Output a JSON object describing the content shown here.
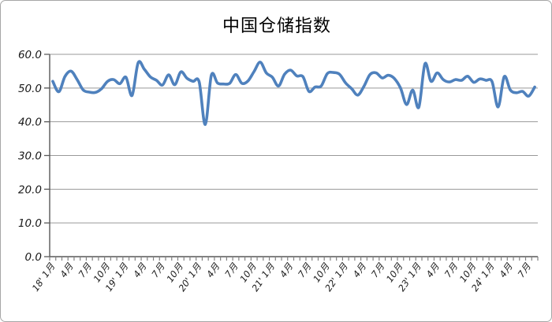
{
  "window": {
    "border_color": "#a6a6a6",
    "background": "#ffffff"
  },
  "chart_data": {
    "type": "line",
    "title": "中国仓储指数",
    "x_start": "2018-01",
    "x_end": "2024-08",
    "x_tick_every_months": 3,
    "x_tick_labels": [
      "18' 1月",
      "4月",
      "7月",
      "10月",
      "19' 1月",
      "4月",
      "7月",
      "10月",
      "20' 1月",
      "4月",
      "7月",
      "10月",
      "21' 1月",
      "4月",
      "7月",
      "10月",
      "22' 1月",
      "4月",
      "7月",
      "10月",
      "23' 1月",
      "4月",
      "7月",
      "10月",
      "24' 1月",
      "4月",
      "7月"
    ],
    "y_tick_labels": [
      "60.0",
      "50.0",
      "40.0",
      "30.0",
      "20.0",
      "10.0",
      "0.0"
    ],
    "ylim": [
      0,
      60
    ],
    "y_step": 10,
    "grid": true,
    "legend": "none",
    "series": [
      {
        "name": "中国仓储指数",
        "color": "#4F81BD",
        "values": [
          52.0,
          48.9,
          53.4,
          55.0,
          52.5,
          49.4,
          48.8,
          48.7,
          49.8,
          52.0,
          52.5,
          51.3,
          53.2,
          47.8,
          57.5,
          55.6,
          53.3,
          52.3,
          50.9,
          53.9,
          51.0,
          54.8,
          52.9,
          52.0,
          51.8,
          39.2,
          53.8,
          51.5,
          51.2,
          51.4,
          54.0,
          51.4,
          52.1,
          54.9,
          57.7,
          54.5,
          53.2,
          50.6,
          54.1,
          55.3,
          53.6,
          53.4,
          49.0,
          50.3,
          50.6,
          54.3,
          54.6,
          54.1,
          51.5,
          49.8,
          47.9,
          50.5,
          54.0,
          54.5,
          53.0,
          53.8,
          52.8,
          50.0,
          45.1,
          49.4,
          44.3,
          57.2,
          52.0,
          54.5,
          52.5,
          51.8,
          52.5,
          52.3,
          53.5,
          51.7,
          52.7,
          52.3,
          51.9,
          44.4,
          53.4,
          49.4,
          48.6,
          49.0,
          47.6,
          50.3
        ]
      }
    ],
    "colors": {
      "line": "#4F81BD",
      "gridline": "#999999",
      "axis": "#595959",
      "tick": "#808080",
      "label": "#1a1a1a"
    }
  }
}
